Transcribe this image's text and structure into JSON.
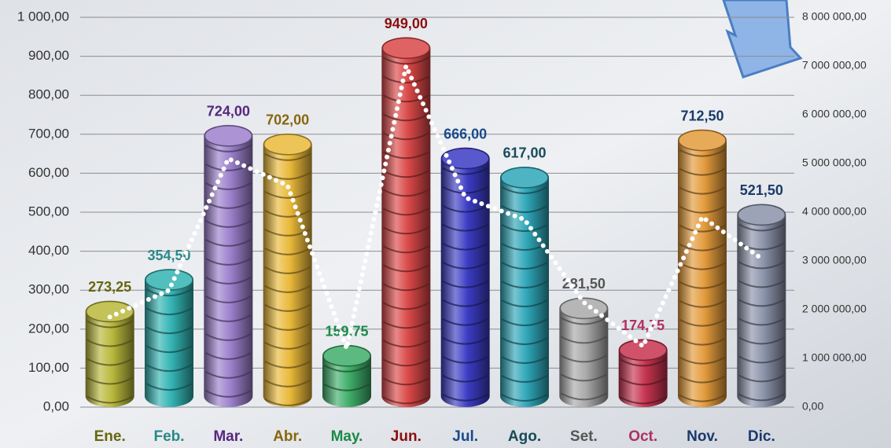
{
  "chart_data": {
    "type": "bar",
    "categories": [
      "Ene.",
      "Feb.",
      "Mar.",
      "Abr.",
      "May.",
      "Jun.",
      "Jul.",
      "Ago.",
      "Set.",
      "Oct.",
      "Nov.",
      "Dic."
    ],
    "values": [
      273.25,
      354.5,
      724,
      702,
      159.75,
      949,
      666,
      617,
      281.5,
      174.75,
      712.5,
      521.5
    ],
    "value_labels": [
      "273,25",
      "354,50",
      "724,00",
      "702,00",
      "159,75",
      "949,00",
      "666,00",
      "617,00",
      "281,50",
      "174,75",
      "712,50",
      "521,50"
    ],
    "colors": [
      "#b9b83c",
      "#33b3b3",
      "#9c80cc",
      "#eab93a",
      "#3fae6a",
      "#da4848",
      "#3c3cc4",
      "#2fa6b8",
      "#a9a9a9",
      "#c63450",
      "#e39b3c",
      "#8b93aa"
    ],
    "text_colors": [
      "#66660e",
      "#2a8888",
      "#56287e",
      "#86660e",
      "#1a8a48",
      "#8a0e0e",
      "#1a4a8a",
      "#184a5a",
      "#555555",
      "#b03060",
      "#1a3a6a",
      "#1a3a6a"
    ],
    "series": [
      {
        "type": "line",
        "axis": "y2",
        "color": "#ffffff",
        "values": [
          1850000,
          2400000,
          5100000,
          4550000,
          1200000,
          7000000,
          4300000,
          3850000,
          2150000,
          1250000,
          3900000,
          3050000
        ]
      }
    ],
    "ylim": [
      0,
      1000
    ],
    "yticks": [
      {
        "value": 0,
        "label": "0,00"
      },
      {
        "value": 100,
        "label": "100,00"
      },
      {
        "value": 200,
        "label": "200,00"
      },
      {
        "value": 300,
        "label": "300,00"
      },
      {
        "value": 400,
        "label": "400,00"
      },
      {
        "value": 500,
        "label": "500,00"
      },
      {
        "value": 600,
        "label": "600,00"
      },
      {
        "value": 700,
        "label": "700,00"
      },
      {
        "value": 800,
        "label": "800,00"
      },
      {
        "value": 900,
        "label": "900,00"
      },
      {
        "value": 1000,
        "label": "1 000,00"
      }
    ],
    "y2lim": [
      0,
      8000000
    ],
    "y2ticks": [
      {
        "value": 0,
        "label": "0,00"
      },
      {
        "value": 1000000,
        "label": "1 000 000,00"
      },
      {
        "value": 2000000,
        "label": "2 000 000,00"
      },
      {
        "value": 3000000,
        "label": "3 000 000,00"
      },
      {
        "value": 4000000,
        "label": "4 000 000,00"
      },
      {
        "value": 5000000,
        "label": "5 000 000,00"
      },
      {
        "value": 6000000,
        "label": "6 000 000,00"
      },
      {
        "value": 7000000,
        "label": "7 000 000,00"
      },
      {
        "value": 8000000,
        "label": "8 000 000,00"
      }
    ],
    "grid": true
  }
}
